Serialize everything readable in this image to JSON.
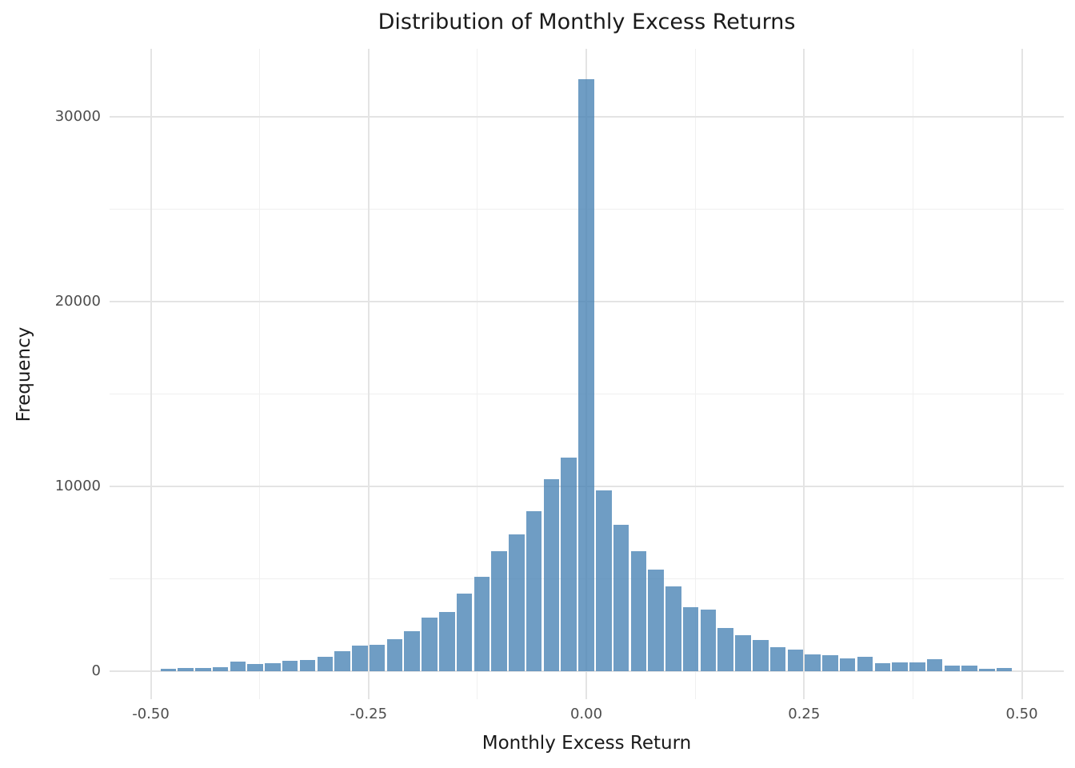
{
  "chart_data": {
    "type": "bar",
    "subtype": "histogram",
    "title": "Distribution of Monthly Excess Returns",
    "xlabel": "Monthly Excess Return",
    "ylabel": "Frequency",
    "bin_width": 0.02,
    "bin_centers": [
      -0.48,
      -0.46,
      -0.44,
      -0.42,
      -0.4,
      -0.38,
      -0.36,
      -0.34,
      -0.32,
      -0.3,
      -0.28,
      -0.26,
      -0.24,
      -0.22,
      -0.2,
      -0.18,
      -0.16,
      -0.14,
      -0.12,
      -0.1,
      -0.08,
      -0.06,
      -0.04,
      -0.02,
      0.0,
      0.02,
      0.04,
      0.06,
      0.08,
      0.1,
      0.12,
      0.14,
      0.16,
      0.18,
      0.2,
      0.22,
      0.24,
      0.26,
      0.28,
      0.3,
      0.32,
      0.34,
      0.36,
      0.38,
      0.4,
      0.42,
      0.44,
      0.46,
      0.48
    ],
    "frequencies": [
      130,
      170,
      175,
      215,
      535,
      410,
      450,
      570,
      620,
      760,
      1100,
      1370,
      1450,
      1720,
      2150,
      2900,
      3190,
      4200,
      5090,
      6510,
      7400,
      8660,
      10380,
      11550,
      32020,
      9800,
      7910,
      6510,
      5500,
      4590,
      3480,
      3330,
      2320,
      1960,
      1670,
      1280,
      1170,
      920,
      850,
      710,
      790,
      420,
      490,
      460,
      630,
      320,
      290,
      140,
      190
    ],
    "x_ticks": [
      {
        "value": -0.5,
        "label": "-0.50"
      },
      {
        "value": -0.25,
        "label": "-0.25"
      },
      {
        "value": 0.0,
        "label": "0.00"
      },
      {
        "value": 0.25,
        "label": "0.25"
      },
      {
        "value": 0.5,
        "label": "0.50"
      }
    ],
    "y_ticks": [
      {
        "value": 0,
        "label": "0"
      },
      {
        "value": 10000,
        "label": "10000"
      },
      {
        "value": 20000,
        "label": "20000"
      },
      {
        "value": 30000,
        "label": "30000"
      }
    ],
    "x_minor_gridlines": [
      -0.375,
      -0.125,
      0.125,
      0.375
    ],
    "y_minor_gridlines": [
      5000,
      15000,
      25000
    ],
    "xlim": [
      -0.545,
      0.548
    ],
    "ylim": [
      0,
      33700
    ],
    "grid": "on",
    "legend": "none",
    "colors": {
      "bar_fill": "#4682B4",
      "bar_alpha": 0.78,
      "grid_major": "#e4e4e4",
      "grid_minor": "#f0f0f0",
      "tick_label": "#4d4d4d",
      "text": "#1a1a1a",
      "background": "#ffffff"
    }
  }
}
